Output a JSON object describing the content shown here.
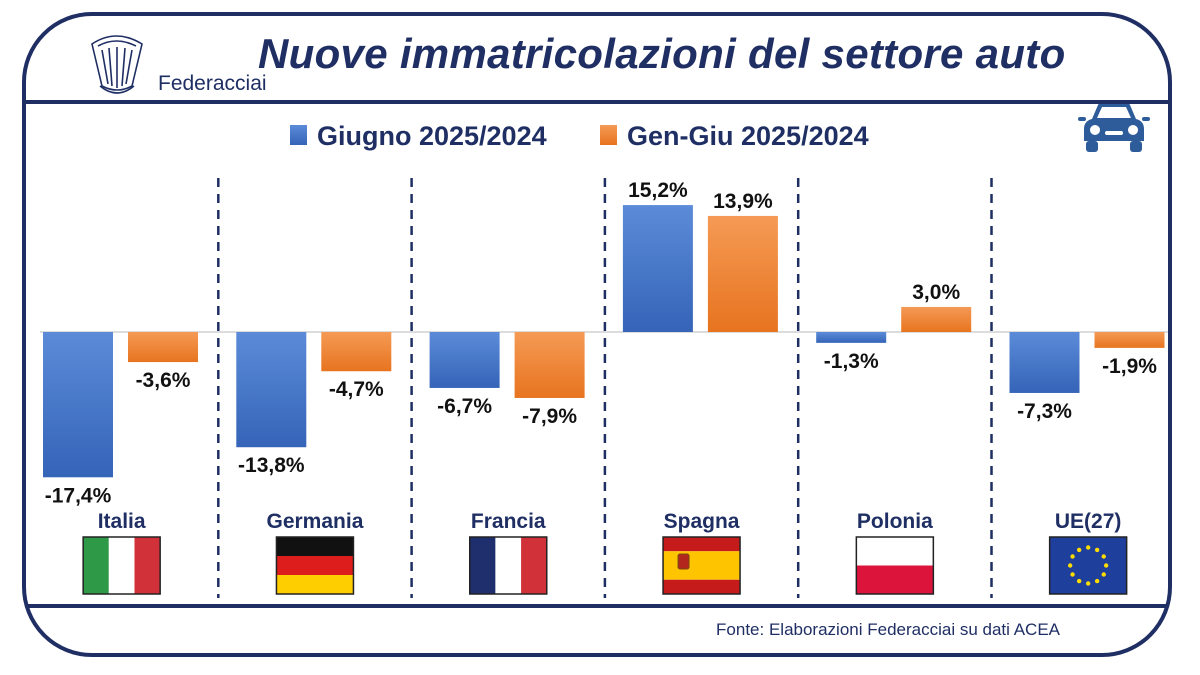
{
  "header": {
    "title": "Nuove immatricolazioni del settore auto",
    "logo_text": "Federacciai",
    "logo_icon": "federacciai-shell-logo",
    "car_icon": "car-icon"
  },
  "footer": {
    "source": "Fonte: Elaborazioni Federacciai su dati ACEA"
  },
  "colors": {
    "frame": "#1f2f64",
    "series_1": "#4472c4",
    "series_2": "#ed7d31"
  },
  "chart_data": {
    "type": "bar",
    "categories": [
      "Italia",
      "Germania",
      "Francia",
      "Spagna",
      "Polonia",
      "UE(27)"
    ],
    "series": [
      {
        "name": "Giugno 2025/2024",
        "values": [
          -17.4,
          -13.8,
          -6.7,
          15.2,
          -1.3,
          -7.3
        ],
        "labels": [
          "-17,4%",
          "-13,8%",
          "-6,7%",
          "15,2%",
          "-1,3%",
          "-7,3%"
        ]
      },
      {
        "name": "Gen-Giu 2025/2024",
        "values": [
          -3.6,
          -4.7,
          -7.9,
          13.9,
          3.0,
          -1.9
        ],
        "labels": [
          "-3,6%",
          "-4,7%",
          "-7,9%",
          "13,9%",
          "3,0%",
          "-1,9%"
        ]
      }
    ],
    "flags": [
      "italy-flag-icon",
      "germany-flag-icon",
      "france-flag-icon",
      "spain-flag-icon",
      "poland-flag-icon",
      "eu-flag-icon"
    ],
    "legend_position": "top",
    "grid": false
  }
}
